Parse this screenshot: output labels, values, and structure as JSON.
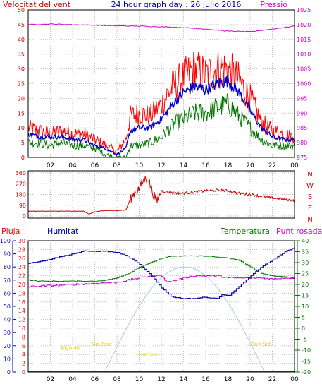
{
  "header": {
    "title": "24 hour graph day : 26 Julio 2016",
    "left_label": "Velocitat del vent",
    "right_label": "Pressió"
  },
  "bottom_header": {
    "rain": "Pluja",
    "humidity": "Humitat",
    "temperature": "Temperatura",
    "dewpoint": "Punt rosada"
  },
  "hour_ticks": [
    "02",
    "04",
    "06",
    "08",
    "10",
    "12",
    "14",
    "16",
    "18",
    "20",
    "22",
    "00"
  ],
  "colors": {
    "frame": "#000000",
    "grid": "#c0c0c0",
    "wind_gust": "#ff0000",
    "wind_avg": "#0000cc",
    "wind_low": "#007700",
    "pressure": "#cc00cc",
    "direction": "#cc0000",
    "humidity": "#0000aa",
    "temperature": "#007700",
    "dewpoint": "#cc00cc",
    "rain": "#ff0000",
    "sun": "#a8c8f0",
    "sun_labels": "#d8d800"
  },
  "chart_data": [
    {
      "type": "line",
      "name": "wind-pressure",
      "x_unit": "hour",
      "xlim": [
        0,
        24
      ],
      "ylim": [
        0,
        50
      ],
      "y_ticks": [
        0,
        5,
        10,
        15,
        20,
        25,
        30,
        35,
        40,
        45,
        50
      ],
      "y2lim": [
        975,
        1025
      ],
      "y2_ticks": [
        975,
        980,
        985,
        990,
        995,
        1000,
        1005,
        1010,
        1015,
        1020,
        1025
      ],
      "series": [
        {
          "key": "gust",
          "x": [
            0,
            1,
            2,
            3,
            4,
            5,
            6,
            7,
            8,
            8.8,
            9.2,
            10,
            11,
            12,
            13,
            14,
            15,
            16,
            17,
            18,
            19,
            20,
            21,
            22,
            23,
            24
          ],
          "values": [
            10,
            9,
            8,
            9,
            8,
            8,
            6,
            4,
            2,
            6,
            14,
            15,
            14,
            18,
            24,
            27,
            30,
            28,
            30,
            30,
            26,
            20,
            12,
            9,
            8,
            7
          ]
        },
        {
          "key": "avg",
          "x": [
            0,
            1,
            2,
            3,
            4,
            5,
            6,
            7,
            8,
            8.8,
            9.2,
            10,
            11,
            12,
            13,
            14,
            15,
            16,
            17,
            18,
            19,
            20,
            21,
            22,
            23,
            24
          ],
          "values": [
            8,
            7,
            7,
            7,
            6,
            6,
            4,
            3,
            1,
            3,
            9,
            10,
            10,
            13,
            18,
            22,
            24,
            23,
            25,
            26,
            22,
            16,
            10,
            7,
            6,
            6
          ]
        },
        {
          "key": "low",
          "x": [
            0,
            1,
            2,
            3,
            4,
            5,
            6,
            7,
            8,
            8.8,
            9.2,
            10,
            11,
            12,
            13,
            14,
            15,
            16,
            17,
            18,
            19,
            20,
            21,
            22,
            23,
            24
          ],
          "values": [
            5,
            5,
            4,
            5,
            4,
            4,
            3,
            1,
            0,
            0,
            4,
            4,
            5,
            7,
            11,
            13,
            15,
            15,
            17,
            18,
            14,
            10,
            6,
            4,
            4,
            4
          ]
        },
        {
          "key": "pressure",
          "axis": "y2",
          "x": [
            0,
            2,
            4,
            6,
            8,
            10,
            12,
            14,
            16,
            18,
            20,
            22,
            24
          ],
          "values": [
            1020.0,
            1020.2,
            1020.0,
            1019.8,
            1019.6,
            1019.5,
            1019.3,
            1019.0,
            1018.5,
            1017.8,
            1017.6,
            1018.5,
            1019.5
          ]
        }
      ]
    },
    {
      "type": "line",
      "name": "wind-direction",
      "x_unit": "hour",
      "xlim": [
        0,
        24
      ],
      "ylim": [
        0,
        360
      ],
      "y_ticks": [
        0,
        90,
        180,
        270,
        360
      ],
      "compass_labels": [
        "N",
        "W",
        "S",
        "E",
        "N"
      ],
      "series": [
        {
          "key": "direction",
          "x": [
            0,
            1,
            2,
            3,
            4,
            5,
            5.5,
            6,
            6.5,
            7,
            7.5,
            8,
            8.8,
            9.2,
            9.6,
            10,
            10.4,
            10.8,
            11.2,
            11.6,
            12,
            12.5,
            13,
            14,
            15,
            16,
            17,
            18,
            19,
            20,
            21,
            22,
            23,
            24
          ],
          "values": [
            40,
            40,
            40,
            40,
            40,
            40,
            15,
            35,
            40,
            45,
            45,
            45,
            50,
            140,
            200,
            230,
            300,
            320,
            200,
            120,
            210,
            200,
            195,
            190,
            200,
            210,
            215,
            210,
            190,
            180,
            165,
            150,
            140,
            130
          ]
        }
      ]
    },
    {
      "type": "line",
      "name": "hum-temp-rain",
      "x_unit": "hour",
      "xlim": [
        0,
        24
      ],
      "humidity_ylim": [
        0,
        100
      ],
      "humidity_ticks": [
        0,
        10,
        20,
        30,
        40,
        50,
        60,
        70,
        80,
        90,
        100
      ],
      "rain_ylim": [
        0,
        30
      ],
      "rain_ticks": [
        0,
        2,
        4,
        6,
        8,
        10,
        12,
        14,
        16,
        18,
        20,
        22,
        24,
        26,
        28,
        30
      ],
      "temp_ylim": [
        -20,
        40
      ],
      "temp_ticks": [
        -20,
        -15,
        -10,
        -5,
        0,
        5,
        10,
        15,
        20,
        25,
        30,
        35,
        40
      ],
      "series": [
        {
          "key": "humidity",
          "x": [
            0,
            1,
            2,
            3,
            4,
            5,
            6,
            7,
            8,
            9,
            10,
            11,
            12,
            13,
            14,
            15,
            16,
            17,
            17.5,
            18,
            19,
            20,
            21,
            22,
            23,
            24
          ],
          "values": [
            83,
            84,
            86,
            88,
            90,
            92,
            92,
            92,
            91,
            88,
            82,
            74,
            64,
            57,
            56,
            56,
            57,
            56,
            59,
            58,
            65,
            73,
            80,
            85,
            91,
            95
          ]
        },
        {
          "key": "temperature",
          "x": [
            0,
            1,
            2,
            3,
            4,
            5,
            6,
            7,
            8,
            9,
            10,
            11,
            12,
            13,
            14,
            15,
            16,
            17,
            18,
            19,
            20,
            21,
            22,
            23,
            24
          ],
          "values": [
            22,
            21.5,
            21.5,
            21.5,
            21.5,
            21.5,
            21.5,
            22,
            23,
            25,
            28,
            30,
            32,
            33,
            33,
            33,
            33,
            32.5,
            32,
            31,
            28,
            25,
            24,
            23.5,
            23
          ]
        },
        {
          "key": "dewpoint",
          "x": [
            0,
            2,
            4,
            6,
            8,
            9,
            10,
            11,
            12,
            12.5,
            13,
            14,
            15,
            16,
            17,
            18,
            19,
            20,
            21,
            22,
            23,
            24
          ],
          "values": [
            19,
            19.5,
            20,
            20.5,
            21,
            22,
            23,
            24,
            24,
            21,
            21.5,
            23,
            24,
            24,
            24,
            23,
            23,
            23,
            23,
            22.5,
            23,
            23
          ]
        },
        {
          "key": "rain",
          "x": [
            0,
            24
          ],
          "values": [
            0,
            0
          ]
        }
      ],
      "sun_curve": {
        "sunrise_hour": 6.9,
        "noon_hour": 14.1,
        "sunset_hour": 21.3,
        "peak_humidity": 80
      },
      "markers": [
        {
          "label": "Bighide",
          "hour": 3.8,
          "humidity": 17
        },
        {
          "label": "Sun Rise",
          "hour": 6.6,
          "humidity": 20
        },
        {
          "label": "Lowtide",
          "hour": 10.8,
          "humidity": 12
        },
        {
          "label": "Sun Set",
          "hour": 21.0,
          "humidity": 20
        }
      ]
    }
  ]
}
